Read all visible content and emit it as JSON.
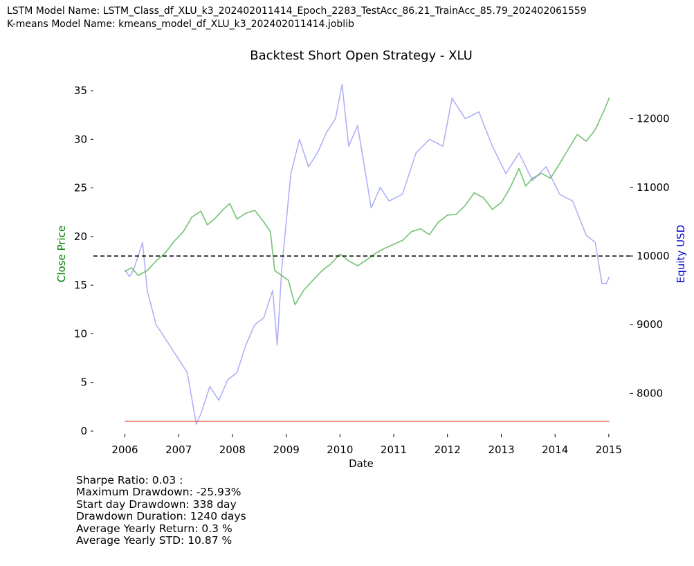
{
  "header": {
    "lstm_model": "LSTM Model Name: LSTM_Class_df_XLU_k3_202402011414_Epoch_2283_TestAcc_86.21_TrainAcc_85.79_202402061559",
    "kmeans_model": "K-means Model Name: kmeans_model_df_XLU_k3_202402011414.joblib"
  },
  "chart_data": {
    "type": "line",
    "title": "Backtest Short Open Strategy - XLU",
    "xlabel": "Date",
    "ylabel_left": "Close Price",
    "ylabel_right": "Equity USD",
    "xlim": [
      "2005-06-01",
      "2015-06-01"
    ],
    "ylim_left": [
      0,
      36
    ],
    "ylim_right": [
      7450,
      12550
    ],
    "x_ticks": [
      "2006",
      "2007",
      "2008",
      "2009",
      "2010",
      "2011",
      "2012",
      "2013",
      "2014",
      "2015"
    ],
    "y_ticks_left": [
      0,
      5,
      10,
      15,
      20,
      25,
      30,
      35
    ],
    "y_ticks_right": [
      8000,
      9000,
      10000,
      11000,
      12000
    ],
    "grid": false,
    "colors": {
      "close": "#2ca02c",
      "equity": "#7b7bf0",
      "baseline": "#000000",
      "lower_line": "#e8604c",
      "ylabel_left": "#008000",
      "ylabel_right": "#0000cc"
    },
    "series": [
      {
        "axis": "left",
        "points": [
          [
            "2006-01-01",
            16.4
          ],
          [
            "2006-02-15",
            16.8
          ],
          [
            "2006-04-01",
            16.0
          ],
          [
            "2006-06-01",
            16.5
          ],
          [
            "2006-08-01",
            17.5
          ],
          [
            "2006-10-01",
            18.3
          ],
          [
            "2006-12-01",
            19.5
          ],
          [
            "2007-02-01",
            20.5
          ],
          [
            "2007-04-01",
            22.0
          ],
          [
            "2007-06-01",
            22.6
          ],
          [
            "2007-07-15",
            21.2
          ],
          [
            "2007-09-01",
            21.8
          ],
          [
            "2007-11-01",
            22.8
          ],
          [
            "2007-12-15",
            23.4
          ],
          [
            "2008-02-01",
            21.8
          ],
          [
            "2008-04-01",
            22.4
          ],
          [
            "2008-06-01",
            22.7
          ],
          [
            "2008-08-01",
            21.5
          ],
          [
            "2008-09-15",
            20.5
          ],
          [
            "2008-10-15",
            16.5
          ],
          [
            "2008-12-01",
            16.0
          ],
          [
            "2009-01-15",
            15.5
          ],
          [
            "2009-03-01",
            13.0
          ],
          [
            "2009-05-01",
            14.5
          ],
          [
            "2009-07-01",
            15.5
          ],
          [
            "2009-09-01",
            16.5
          ],
          [
            "2009-11-01",
            17.2
          ],
          [
            "2010-01-01",
            18.2
          ],
          [
            "2010-03-01",
            17.5
          ],
          [
            "2010-05-01",
            17.0
          ],
          [
            "2010-07-01",
            17.6
          ],
          [
            "2010-09-01",
            18.3
          ],
          [
            "2010-11-01",
            18.8
          ],
          [
            "2011-01-01",
            19.2
          ],
          [
            "2011-03-01",
            19.6
          ],
          [
            "2011-05-01",
            20.5
          ],
          [
            "2011-07-01",
            20.8
          ],
          [
            "2011-09-01",
            20.2
          ],
          [
            "2011-11-01",
            21.5
          ],
          [
            "2012-01-01",
            22.2
          ],
          [
            "2012-03-01",
            22.3
          ],
          [
            "2012-05-01",
            23.2
          ],
          [
            "2012-07-01",
            24.5
          ],
          [
            "2012-09-01",
            24.0
          ],
          [
            "2012-11-01",
            22.8
          ],
          [
            "2013-01-01",
            23.5
          ],
          [
            "2013-03-01",
            25.0
          ],
          [
            "2013-05-01",
            27.0
          ],
          [
            "2013-06-15",
            25.2
          ],
          [
            "2013-08-01",
            26.0
          ],
          [
            "2013-10-01",
            26.5
          ],
          [
            "2013-12-01",
            26.0
          ],
          [
            "2014-02-01",
            27.5
          ],
          [
            "2014-04-01",
            29.0
          ],
          [
            "2014-06-01",
            30.5
          ],
          [
            "2014-08-01",
            29.8
          ],
          [
            "2014-10-01",
            31.0
          ],
          [
            "2014-12-01",
            33.0
          ],
          [
            "2015-01-05",
            34.3
          ]
        ]
      },
      {
        "axis": "right",
        "points": [
          [
            "2006-01-01",
            9800
          ],
          [
            "2006-02-01",
            9700
          ],
          [
            "2006-03-01",
            9800
          ],
          [
            "2006-05-01",
            10200
          ],
          [
            "2006-06-01",
            9500
          ],
          [
            "2006-08-01",
            9000
          ],
          [
            "2006-10-01",
            8800
          ],
          [
            "2006-12-01",
            8600
          ],
          [
            "2007-03-01",
            8300
          ],
          [
            "2007-05-01",
            7550
          ],
          [
            "2007-06-01",
            7700
          ],
          [
            "2007-08-01",
            8100
          ],
          [
            "2007-10-01",
            7900
          ],
          [
            "2007-12-01",
            8200
          ],
          [
            "2008-02-01",
            8300
          ],
          [
            "2008-04-01",
            8700
          ],
          [
            "2008-06-01",
            9000
          ],
          [
            "2008-08-01",
            9100
          ],
          [
            "2008-10-01",
            9500
          ],
          [
            "2008-11-01",
            8700
          ],
          [
            "2008-12-01",
            9800
          ],
          [
            "2009-02-01",
            11200
          ],
          [
            "2009-04-01",
            11700
          ],
          [
            "2009-06-01",
            11300
          ],
          [
            "2009-08-01",
            11500
          ],
          [
            "2009-10-01",
            11800
          ],
          [
            "2009-12-01",
            12000
          ],
          [
            "2010-01-15",
            12500
          ],
          [
            "2010-03-01",
            11600
          ],
          [
            "2010-05-01",
            11900
          ],
          [
            "2010-08-01",
            10700
          ],
          [
            "2010-10-01",
            11000
          ],
          [
            "2010-12-01",
            10800
          ],
          [
            "2011-03-01",
            10900
          ],
          [
            "2011-06-01",
            11500
          ],
          [
            "2011-09-01",
            11700
          ],
          [
            "2011-12-01",
            11600
          ],
          [
            "2012-02-01",
            12300
          ],
          [
            "2012-05-01",
            12000
          ],
          [
            "2012-08-01",
            12100
          ],
          [
            "2012-11-01",
            11600
          ],
          [
            "2013-02-01",
            11200
          ],
          [
            "2013-05-01",
            11500
          ],
          [
            "2013-08-01",
            11100
          ],
          [
            "2013-11-01",
            11300
          ],
          [
            "2014-02-01",
            10900
          ],
          [
            "2014-05-01",
            10800
          ],
          [
            "2014-08-01",
            10300
          ],
          [
            "2014-10-01",
            10200
          ],
          [
            "2014-11-15",
            9600
          ],
          [
            "2014-12-15",
            9600
          ],
          [
            "2015-01-05",
            9700
          ]
        ]
      },
      {
        "axis": "right",
        "style": "dashed",
        "points": [
          [
            "2005-06-01",
            10000
          ],
          [
            "2015-06-01",
            10000
          ]
        ]
      },
      {
        "axis": "left",
        "points": [
          [
            "2006-01-01",
            1
          ],
          [
            "2015-01-05",
            1
          ]
        ]
      }
    ]
  },
  "stats": {
    "sharpe": "Sharpe Ratio: 0.03 :",
    "max_drawdown": "Maximum Drawdown: -25.93%",
    "start_drawdown": "Start day Drawdown: 338 day",
    "drawdown_duration": "Drawdown Duration: 1240 days",
    "avg_return": "Average Yearly Return: 0.3 %",
    "avg_std": "Average Yearly STD: 10.87 %"
  }
}
